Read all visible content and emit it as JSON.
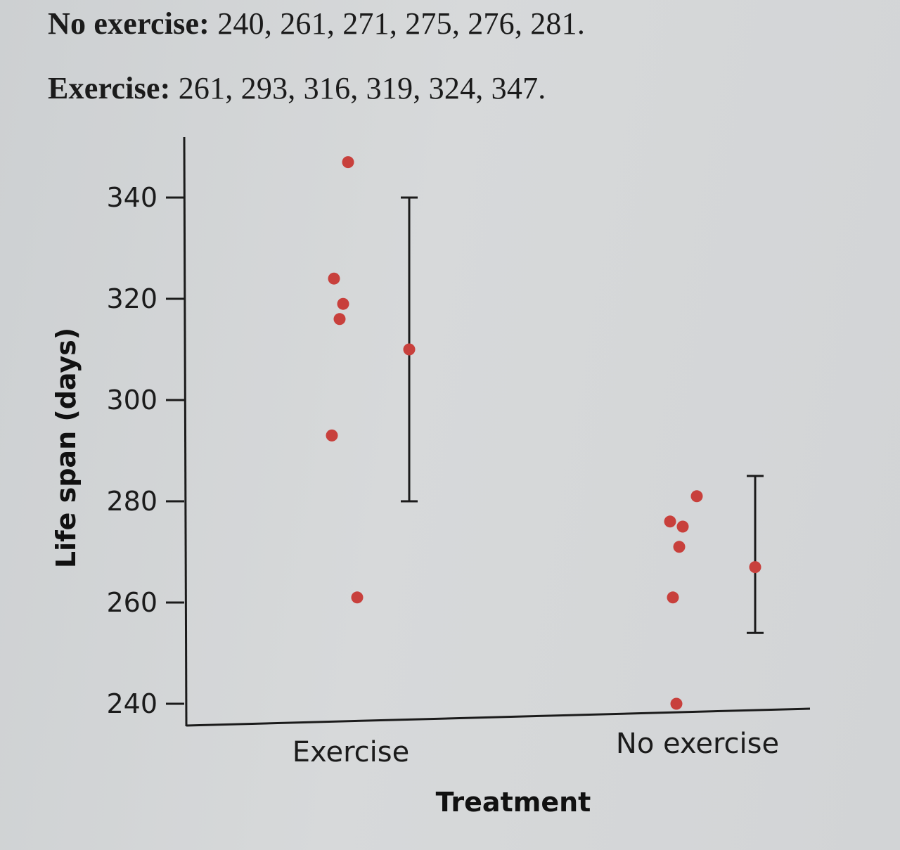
{
  "text_lines": {
    "no_exercise": {
      "label": "No exercise:",
      "values": "240, 261, 271, 275, 276, 281."
    },
    "exercise": {
      "label": "Exercise:",
      "values": "261, 293, 316, 319, 324, 347."
    }
  },
  "chart_data": {
    "type": "scatter",
    "title": "",
    "xlabel": "Treatment",
    "ylabel": "Life span (days)",
    "ylim": [
      235,
      351
    ],
    "yticks": [
      240,
      260,
      280,
      300,
      320,
      340
    ],
    "categories": [
      "Exercise",
      "No exercise"
    ],
    "series": [
      {
        "name": "Exercise",
        "values": [
          261,
          293,
          316,
          319,
          324,
          347
        ],
        "mean": 310,
        "error_bar": [
          280,
          340
        ]
      },
      {
        "name": "No exercise",
        "values": [
          240,
          261,
          271,
          275,
          276,
          281
        ],
        "mean": 267,
        "error_bar": [
          254,
          285
        ]
      }
    ],
    "point_color": "#c8403c",
    "legend": "none"
  }
}
